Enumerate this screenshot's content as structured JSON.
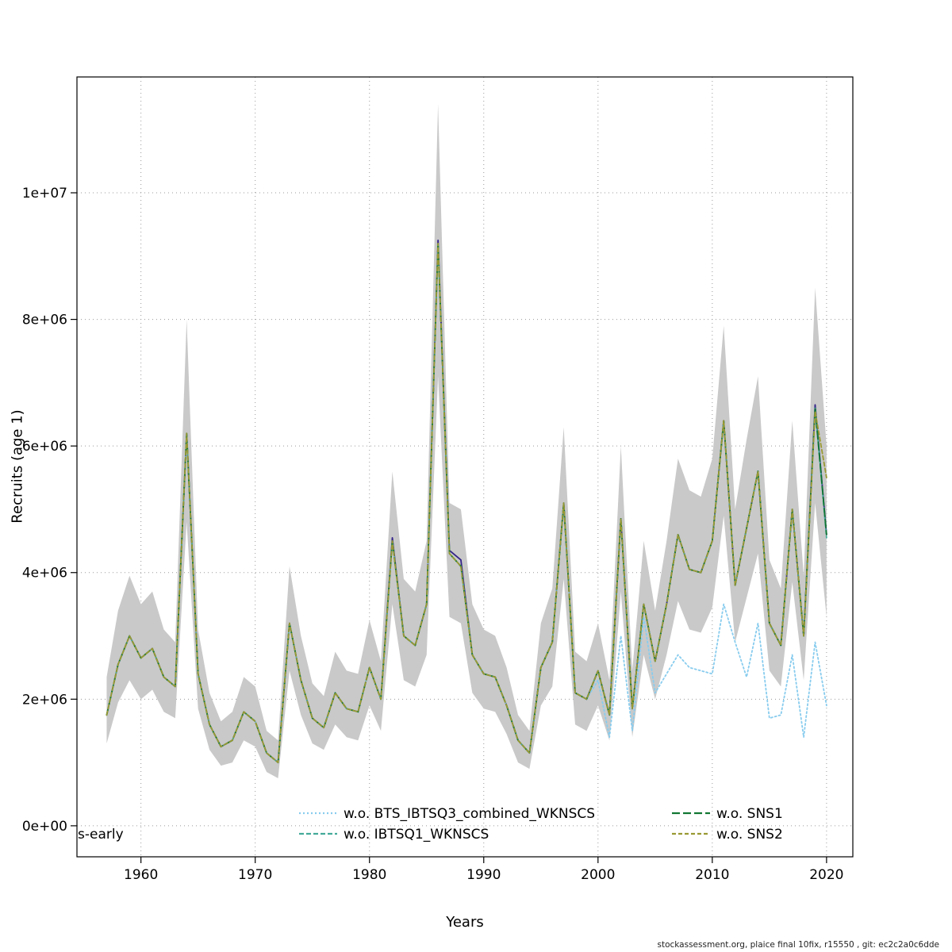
{
  "page": {
    "corner_label": "s-early",
    "footer": "stockassessment.org, plaice final 10fix, r15550 , git: ec2c2a0c6dde"
  },
  "chart_data": {
    "type": "line",
    "title": "",
    "xlabel": "Years",
    "ylabel": "Recruits (age 1)",
    "grid": "dotted",
    "legend_position": "bottom-center-inside",
    "xlim": [
      1954.4,
      2022.3
    ],
    "ylim_millions": [
      -0.49,
      11.83
    ],
    "values_unit": "recruits, values stored in millions (1e6)",
    "x_ticks": [
      1960,
      1970,
      1980,
      1990,
      2000,
      2010,
      2020
    ],
    "y_ticks": [
      {
        "value_millions": 0,
        "label": "0e+00"
      },
      {
        "value_millions": 2,
        "label": "2e+06"
      },
      {
        "value_millions": 4,
        "label": "4e+06"
      },
      {
        "value_millions": 6,
        "label": "6e+06"
      },
      {
        "value_millions": 8,
        "label": "8e+06"
      },
      {
        "value_millions": 10,
        "label": "1e+07"
      }
    ],
    "years": [
      1957,
      1958,
      1959,
      1960,
      1961,
      1962,
      1963,
      1964,
      1965,
      1966,
      1967,
      1968,
      1969,
      1970,
      1971,
      1972,
      1973,
      1974,
      1975,
      1976,
      1977,
      1978,
      1979,
      1980,
      1981,
      1982,
      1983,
      1984,
      1985,
      1986,
      1987,
      1988,
      1989,
      1990,
      1991,
      1992,
      1993,
      1994,
      1995,
      1996,
      1997,
      1998,
      1999,
      2000,
      2001,
      2002,
      2003,
      2004,
      2005,
      2006,
      2007,
      2008,
      2009,
      2010,
      2011,
      2012,
      2013,
      2014,
      2015,
      2016,
      2017,
      2018,
      2019,
      2020
    ],
    "band": {
      "color": "#c9c9c9",
      "lower_millions": [
        1.3,
        1.95,
        2.3,
        2.0,
        2.15,
        1.8,
        1.7,
        4.8,
        1.85,
        1.2,
        0.95,
        1.0,
        1.35,
        1.25,
        0.85,
        0.75,
        2.45,
        1.75,
        1.3,
        1.2,
        1.6,
        1.4,
        1.35,
        1.9,
        1.5,
        3.5,
        2.3,
        2.2,
        2.7,
        7.1,
        3.3,
        3.2,
        2.1,
        1.85,
        1.8,
        1.45,
        1.0,
        0.9,
        1.9,
        2.2,
        3.9,
        1.6,
        1.5,
        1.9,
        1.35,
        3.7,
        1.4,
        2.7,
        2.0,
        2.7,
        3.55,
        3.1,
        3.05,
        3.45,
        4.9,
        2.9,
        3.6,
        4.3,
        2.45,
        2.2,
        3.85,
        2.3,
        5.1,
        3.3
      ],
      "upper_millions": [
        2.35,
        3.4,
        3.95,
        3.5,
        3.7,
        3.1,
        2.9,
        8.0,
        3.1,
        2.1,
        1.65,
        1.8,
        2.35,
        2.2,
        1.5,
        1.35,
        4.1,
        3.0,
        2.25,
        2.05,
        2.75,
        2.45,
        2.4,
        3.25,
        2.6,
        5.6,
        3.9,
        3.7,
        4.5,
        11.4,
        5.1,
        5.0,
        3.5,
        3.1,
        3.0,
        2.5,
        1.75,
        1.5,
        3.2,
        3.75,
        6.3,
        2.75,
        2.6,
        3.2,
        2.3,
        6.0,
        2.45,
        4.5,
        3.4,
        4.5,
        5.8,
        5.3,
        5.2,
        5.8,
        7.9,
        5.0,
        6.1,
        7.1,
        4.2,
        3.75,
        6.4,
        3.95,
        8.5,
        6.0
      ]
    },
    "series": [
      {
        "name": "(unlabeled base line)",
        "color": "#332288",
        "dash": "",
        "in_legend": false,
        "values_millions": [
          1.75,
          2.55,
          3.0,
          2.65,
          2.8,
          2.35,
          2.2,
          6.2,
          2.4,
          1.6,
          1.25,
          1.35,
          1.8,
          1.65,
          1.15,
          1.0,
          3.2,
          2.3,
          1.7,
          1.55,
          2.1,
          1.85,
          1.8,
          2.5,
          2.0,
          4.55,
          3.0,
          2.85,
          3.5,
          9.25,
          4.35,
          4.2,
          2.7,
          2.4,
          2.35,
          1.9,
          1.35,
          1.15,
          2.5,
          2.9,
          5.1,
          2.1,
          2.0,
          2.45,
          1.75,
          4.85,
          1.85,
          3.5,
          2.6,
          3.5,
          4.6,
          4.05,
          4.0,
          4.5,
          6.4,
          3.8,
          4.7,
          5.6,
          3.2,
          2.85,
          5.0,
          3.0,
          6.65,
          4.6
        ]
      },
      {
        "name": "w.o. BTS_IBTSQ3_combined_WKNSCS",
        "color": "#88CCEE",
        "dash": "2,3",
        "in_legend": true,
        "values_millions": [
          1.75,
          2.55,
          3.0,
          2.65,
          2.8,
          2.35,
          2.2,
          6.2,
          2.4,
          1.6,
          1.25,
          1.35,
          1.8,
          1.65,
          1.15,
          1.0,
          3.2,
          2.3,
          1.7,
          1.55,
          2.1,
          1.85,
          1.8,
          2.5,
          2.0,
          4.5,
          3.0,
          2.85,
          3.5,
          9.2,
          4.3,
          4.1,
          2.7,
          2.4,
          2.35,
          1.9,
          1.35,
          1.15,
          2.5,
          2.9,
          5.1,
          2.1,
          2.0,
          2.3,
          1.4,
          3.0,
          1.5,
          3.3,
          2.1,
          2.4,
          2.7,
          2.5,
          2.45,
          2.4,
          3.5,
          2.9,
          2.35,
          3.2,
          1.7,
          1.75,
          2.7,
          1.4,
          2.9,
          1.9
        ]
      },
      {
        "name": "w.o. IBTSQ1_WKNSCS",
        "color": "#44AA99",
        "dash": "6,3",
        "in_legend": true,
        "values_millions": [
          1.75,
          2.55,
          3.0,
          2.65,
          2.8,
          2.35,
          2.2,
          6.2,
          2.4,
          1.6,
          1.25,
          1.35,
          1.8,
          1.65,
          1.15,
          1.0,
          3.2,
          2.3,
          1.7,
          1.55,
          2.1,
          1.85,
          1.8,
          2.5,
          2.0,
          4.5,
          3.0,
          2.85,
          3.5,
          9.2,
          4.3,
          4.1,
          2.7,
          2.4,
          2.35,
          1.9,
          1.35,
          1.15,
          2.5,
          2.9,
          5.1,
          2.1,
          2.0,
          2.45,
          1.75,
          4.85,
          1.85,
          3.5,
          2.6,
          3.5,
          4.6,
          4.05,
          4.0,
          4.5,
          6.4,
          3.8,
          4.7,
          5.6,
          3.2,
          2.85,
          5.0,
          3.0,
          6.6,
          4.55
        ]
      },
      {
        "name": "w.o. SNS1",
        "color": "#117733",
        "dash": "10,4",
        "in_legend": true,
        "values_millions": [
          1.75,
          2.55,
          3.0,
          2.65,
          2.8,
          2.35,
          2.2,
          6.2,
          2.4,
          1.6,
          1.25,
          1.35,
          1.8,
          1.65,
          1.15,
          1.0,
          3.2,
          2.3,
          1.7,
          1.55,
          2.1,
          1.85,
          1.8,
          2.5,
          2.0,
          4.5,
          3.0,
          2.85,
          3.5,
          9.2,
          4.3,
          4.1,
          2.7,
          2.4,
          2.35,
          1.9,
          1.35,
          1.15,
          2.5,
          2.9,
          5.1,
          2.1,
          2.0,
          2.45,
          1.75,
          4.85,
          1.85,
          3.5,
          2.6,
          3.5,
          4.6,
          4.05,
          4.0,
          4.5,
          6.4,
          3.8,
          4.7,
          5.6,
          3.2,
          2.85,
          5.0,
          3.0,
          6.6,
          4.6
        ]
      },
      {
        "name": "w.o. SNS2",
        "color": "#999933",
        "dash": "5,3",
        "in_legend": true,
        "values_millions": [
          1.75,
          2.55,
          3.0,
          2.65,
          2.8,
          2.35,
          2.2,
          6.2,
          2.4,
          1.6,
          1.25,
          1.35,
          1.8,
          1.65,
          1.15,
          1.0,
          3.2,
          2.3,
          1.7,
          1.55,
          2.1,
          1.85,
          1.8,
          2.5,
          2.0,
          4.5,
          3.0,
          2.85,
          3.5,
          9.2,
          4.3,
          4.1,
          2.7,
          2.4,
          2.35,
          1.9,
          1.35,
          1.15,
          2.5,
          2.9,
          5.1,
          2.1,
          2.0,
          2.45,
          1.75,
          4.85,
          1.85,
          3.5,
          2.6,
          3.5,
          4.6,
          4.05,
          4.0,
          4.5,
          6.4,
          3.8,
          4.7,
          5.6,
          3.2,
          2.85,
          5.0,
          3.0,
          6.55,
          5.5
        ]
      }
    ],
    "legend": {
      "entries": [
        "w.o. BTS_IBTSQ3_combined_WKNSCS",
        "w.o. IBTSQ1_WKNSCS",
        "w.o. SNS1",
        "w.o. SNS2"
      ]
    }
  }
}
